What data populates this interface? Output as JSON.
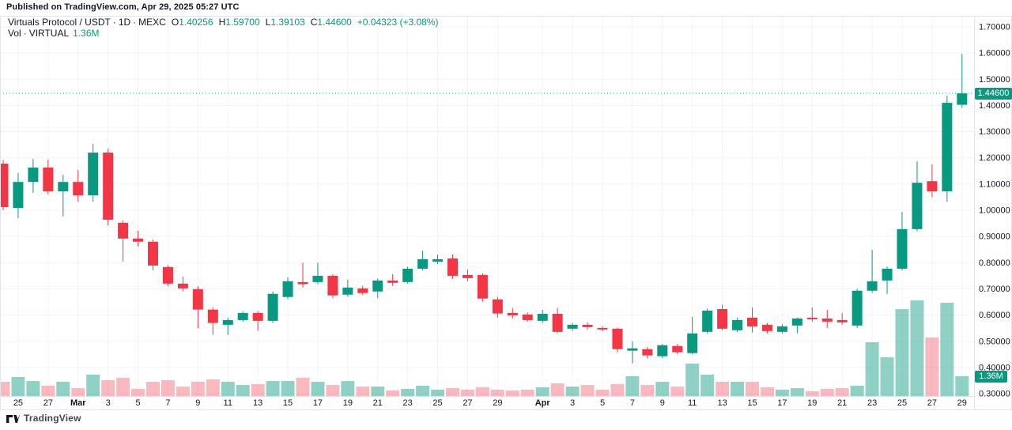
{
  "app": {
    "published_line": "Published on TradingView.com, Apr 29, 2025 05:27 UTC",
    "brand": "TradingView"
  },
  "legend": {
    "symbol": "Virtuals Protocol / USDT",
    "sep": "·",
    "interval": "1D",
    "exchange": "MEXC",
    "o_label": "O",
    "o_value": "1.40256",
    "h_label": "H",
    "h_value": "1.59700",
    "l_label": "L",
    "l_value": "1.39103",
    "c_label": "C",
    "c_value": "1.44600",
    "change": "+0.04323 (+3.08%)",
    "vol_label": "Vol",
    "vol_symbol": "VIRTUAL",
    "vol_value": "1.36M"
  },
  "axis_badges": {
    "last_price": "1.44600",
    "last_volume": "1.36M"
  },
  "colors": {
    "up": "#089981",
    "down": "#f23645",
    "vol_up": "rgba(8,153,129,0.45)",
    "vol_down": "rgba(242,54,69,0.35)",
    "grid": "#f0f3fa",
    "border": "#e0e3eb",
    "axis_text": "#131722",
    "badge_bg": "#089981"
  },
  "chart_data": {
    "type": "candlestick",
    "title": "Virtuals Protocol / USDT · 1D · MEXC",
    "legend_position": "top-left",
    "grid": true,
    "ylim": [
      0.3,
      1.7
    ],
    "y_tick_step": 0.1,
    "y_tick_decimals": 5,
    "volume_unit": "M",
    "last_volume_m": 1.36,
    "x_ticks": [
      {
        "i": 1,
        "label": "25"
      },
      {
        "i": 3,
        "label": "27"
      },
      {
        "i": 5,
        "label": "Mar",
        "month": true
      },
      {
        "i": 7,
        "label": "3"
      },
      {
        "i": 9,
        "label": "5"
      },
      {
        "i": 11,
        "label": "7"
      },
      {
        "i": 13,
        "label": "9"
      },
      {
        "i": 15,
        "label": "11"
      },
      {
        "i": 17,
        "label": "13"
      },
      {
        "i": 19,
        "label": "15"
      },
      {
        "i": 21,
        "label": "17"
      },
      {
        "i": 23,
        "label": "19"
      },
      {
        "i": 25,
        "label": "21"
      },
      {
        "i": 27,
        "label": "23"
      },
      {
        "i": 29,
        "label": "25"
      },
      {
        "i": 31,
        "label": "27"
      },
      {
        "i": 33,
        "label": "29"
      },
      {
        "i": 36,
        "label": "Apr",
        "month": true
      },
      {
        "i": 38,
        "label": "3"
      },
      {
        "i": 40,
        "label": "5"
      },
      {
        "i": 42,
        "label": "7"
      },
      {
        "i": 44,
        "label": "9"
      },
      {
        "i": 46,
        "label": "11"
      },
      {
        "i": 48,
        "label": "13"
      },
      {
        "i": 50,
        "label": "15"
      },
      {
        "i": 52,
        "label": "17"
      },
      {
        "i": 54,
        "label": "19"
      },
      {
        "i": 56,
        "label": "21"
      },
      {
        "i": 58,
        "label": "23"
      },
      {
        "i": 60,
        "label": "25"
      },
      {
        "i": 62,
        "label": "27"
      },
      {
        "i": 64,
        "label": "29"
      }
    ],
    "candles": [
      {
        "d": "Feb 24",
        "o": 1.178,
        "h": 1.192,
        "l": 1.0,
        "c": 1.012,
        "v": 0.98
      },
      {
        "d": "Feb 25",
        "o": 1.009,
        "h": 1.142,
        "l": 0.97,
        "c": 1.108,
        "v": 1.31
      },
      {
        "d": "Feb 26",
        "o": 1.108,
        "h": 1.196,
        "l": 1.066,
        "c": 1.163,
        "v": 1.03
      },
      {
        "d": "Feb 27",
        "o": 1.163,
        "h": 1.193,
        "l": 1.06,
        "c": 1.072,
        "v": 0.71
      },
      {
        "d": "Feb 28",
        "o": 1.072,
        "h": 1.136,
        "l": 0.976,
        "c": 1.108,
        "v": 0.98
      },
      {
        "d": "Mar 1",
        "o": 1.108,
        "h": 1.154,
        "l": 1.033,
        "c": 1.057,
        "v": 0.54
      },
      {
        "d": "Mar 2",
        "o": 1.057,
        "h": 1.253,
        "l": 1.033,
        "c": 1.22,
        "v": 1.47
      },
      {
        "d": "Mar 3",
        "o": 1.22,
        "h": 1.235,
        "l": 0.943,
        "c": 0.964,
        "v": 1.09
      },
      {
        "d": "Mar 4",
        "o": 0.952,
        "h": 0.961,
        "l": 0.804,
        "c": 0.892,
        "v": 1.25
      },
      {
        "d": "Mar 5",
        "o": 0.892,
        "h": 0.922,
        "l": 0.862,
        "c": 0.88,
        "v": 0.49
      },
      {
        "d": "Mar 6",
        "o": 0.88,
        "h": 0.888,
        "l": 0.771,
        "c": 0.789,
        "v": 0.98
      },
      {
        "d": "Mar 7",
        "o": 0.783,
        "h": 0.79,
        "l": 0.71,
        "c": 0.72,
        "v": 1.09
      },
      {
        "d": "Mar 8",
        "o": 0.72,
        "h": 0.747,
        "l": 0.69,
        "c": 0.702,
        "v": 0.65
      },
      {
        "d": "Mar 9",
        "o": 0.699,
        "h": 0.71,
        "l": 0.55,
        "c": 0.621,
        "v": 0.98
      },
      {
        "d": "Mar 10",
        "o": 0.621,
        "h": 0.63,
        "l": 0.524,
        "c": 0.57,
        "v": 1.14
      },
      {
        "d": "Mar 11",
        "o": 0.563,
        "h": 0.59,
        "l": 0.524,
        "c": 0.581,
        "v": 0.98
      },
      {
        "d": "Mar 12",
        "o": 0.581,
        "h": 0.615,
        "l": 0.575,
        "c": 0.608,
        "v": 0.76
      },
      {
        "d": "Mar 13",
        "o": 0.608,
        "h": 0.615,
        "l": 0.54,
        "c": 0.578,
        "v": 0.82
      },
      {
        "d": "Mar 14",
        "o": 0.578,
        "h": 0.69,
        "l": 0.57,
        "c": 0.681,
        "v": 1.03
      },
      {
        "d": "Mar 15",
        "o": 0.669,
        "h": 0.744,
        "l": 0.66,
        "c": 0.729,
        "v": 1.03
      },
      {
        "d": "Mar 16",
        "o": 0.726,
        "h": 0.8,
        "l": 0.705,
        "c": 0.718,
        "v": 1.25
      },
      {
        "d": "Mar 17",
        "o": 0.726,
        "h": 0.8,
        "l": 0.718,
        "c": 0.75,
        "v": 0.98
      },
      {
        "d": "Mar 18",
        "o": 0.75,
        "h": 0.756,
        "l": 0.665,
        "c": 0.675,
        "v": 0.76
      },
      {
        "d": "Mar 19",
        "o": 0.678,
        "h": 0.735,
        "l": 0.67,
        "c": 0.705,
        "v": 1.03
      },
      {
        "d": "Mar 20",
        "o": 0.702,
        "h": 0.712,
        "l": 0.676,
        "c": 0.684,
        "v": 0.65
      },
      {
        "d": "Mar 21",
        "o": 0.69,
        "h": 0.74,
        "l": 0.665,
        "c": 0.732,
        "v": 0.65
      },
      {
        "d": "Mar 22",
        "o": 0.732,
        "h": 0.756,
        "l": 0.711,
        "c": 0.723,
        "v": 0.38
      },
      {
        "d": "Mar 23",
        "o": 0.726,
        "h": 0.785,
        "l": 0.72,
        "c": 0.777,
        "v": 0.49
      },
      {
        "d": "Mar 24",
        "o": 0.777,
        "h": 0.846,
        "l": 0.77,
        "c": 0.813,
        "v": 0.71
      },
      {
        "d": "Mar 25",
        "o": 0.804,
        "h": 0.831,
        "l": 0.795,
        "c": 0.813,
        "v": 0.44
      },
      {
        "d": "Mar 26",
        "o": 0.816,
        "h": 0.831,
        "l": 0.738,
        "c": 0.75,
        "v": 0.54
      },
      {
        "d": "Mar 27",
        "o": 0.753,
        "h": 0.774,
        "l": 0.729,
        "c": 0.741,
        "v": 0.44
      },
      {
        "d": "Mar 28",
        "o": 0.753,
        "h": 0.76,
        "l": 0.651,
        "c": 0.663,
        "v": 0.6
      },
      {
        "d": "Mar 29",
        "o": 0.66,
        "h": 0.67,
        "l": 0.59,
        "c": 0.606,
        "v": 0.44
      },
      {
        "d": "Mar 30",
        "o": 0.608,
        "h": 0.627,
        "l": 0.587,
        "c": 0.599,
        "v": 0.38
      },
      {
        "d": "Mar 31",
        "o": 0.602,
        "h": 0.61,
        "l": 0.575,
        "c": 0.581,
        "v": 0.44
      },
      {
        "d": "Apr 1",
        "o": 0.578,
        "h": 0.62,
        "l": 0.57,
        "c": 0.605,
        "v": 0.6
      },
      {
        "d": "Apr 2",
        "o": 0.605,
        "h": 0.627,
        "l": 0.53,
        "c": 0.536,
        "v": 0.87
      },
      {
        "d": "Apr 3",
        "o": 0.548,
        "h": 0.57,
        "l": 0.54,
        "c": 0.563,
        "v": 0.65
      },
      {
        "d": "Apr 4",
        "o": 0.563,
        "h": 0.572,
        "l": 0.545,
        "c": 0.554,
        "v": 0.76
      },
      {
        "d": "Apr 5",
        "o": 0.551,
        "h": 0.558,
        "l": 0.538,
        "c": 0.545,
        "v": 0.44
      },
      {
        "d": "Apr 6",
        "o": 0.548,
        "h": 0.552,
        "l": 0.458,
        "c": 0.47,
        "v": 0.82
      },
      {
        "d": "Apr 7",
        "o": 0.464,
        "h": 0.5,
        "l": 0.416,
        "c": 0.473,
        "v": 1.36
      },
      {
        "d": "Apr 8",
        "o": 0.47,
        "h": 0.478,
        "l": 0.435,
        "c": 0.446,
        "v": 0.76
      },
      {
        "d": "Apr 9",
        "o": 0.443,
        "h": 0.49,
        "l": 0.435,
        "c": 0.485,
        "v": 0.98
      },
      {
        "d": "Apr 10",
        "o": 0.482,
        "h": 0.49,
        "l": 0.45,
        "c": 0.458,
        "v": 0.65
      },
      {
        "d": "Apr 11",
        "o": 0.455,
        "h": 0.593,
        "l": 0.45,
        "c": 0.53,
        "v": 2.23
      },
      {
        "d": "Apr 12",
        "o": 0.536,
        "h": 0.625,
        "l": 0.53,
        "c": 0.617,
        "v": 1.47
      },
      {
        "d": "Apr 13",
        "o": 0.623,
        "h": 0.639,
        "l": 0.542,
        "c": 0.548,
        "v": 0.98
      },
      {
        "d": "Apr 14",
        "o": 0.542,
        "h": 0.59,
        "l": 0.535,
        "c": 0.581,
        "v": 0.98
      },
      {
        "d": "Apr 15",
        "o": 0.59,
        "h": 0.629,
        "l": 0.533,
        "c": 0.557,
        "v": 0.98
      },
      {
        "d": "Apr 16",
        "o": 0.563,
        "h": 0.57,
        "l": 0.53,
        "c": 0.539,
        "v": 0.6
      },
      {
        "d": "Apr 17",
        "o": 0.536,
        "h": 0.565,
        "l": 0.53,
        "c": 0.557,
        "v": 0.44
      },
      {
        "d": "Apr 18",
        "o": 0.56,
        "h": 0.59,
        "l": 0.53,
        "c": 0.587,
        "v": 0.54
      },
      {
        "d": "Apr 19",
        "o": 0.59,
        "h": 0.629,
        "l": 0.575,
        "c": 0.584,
        "v": 0.33
      },
      {
        "d": "Apr 20",
        "o": 0.587,
        "h": 0.62,
        "l": 0.551,
        "c": 0.575,
        "v": 0.49
      },
      {
        "d": "Apr 21",
        "o": 0.581,
        "h": 0.608,
        "l": 0.563,
        "c": 0.572,
        "v": 0.54
      },
      {
        "d": "Apr 22",
        "o": 0.56,
        "h": 0.7,
        "l": 0.551,
        "c": 0.693,
        "v": 0.71
      },
      {
        "d": "Apr 23",
        "o": 0.693,
        "h": 0.849,
        "l": 0.685,
        "c": 0.729,
        "v": 3.7
      },
      {
        "d": "Apr 24",
        "o": 0.732,
        "h": 0.785,
        "l": 0.681,
        "c": 0.777,
        "v": 2.67
      },
      {
        "d": "Apr 25",
        "o": 0.777,
        "h": 0.994,
        "l": 0.77,
        "c": 0.928,
        "v": 5.98
      },
      {
        "d": "Apr 26",
        "o": 0.928,
        "h": 1.187,
        "l": 0.92,
        "c": 1.105,
        "v": 6.58
      },
      {
        "d": "Apr 27",
        "o": 1.111,
        "h": 1.175,
        "l": 1.051,
        "c": 1.072,
        "v": 4.03
      },
      {
        "d": "Apr 28",
        "o": 1.072,
        "h": 1.437,
        "l": 1.033,
        "c": 1.41,
        "v": 6.42
      },
      {
        "d": "Apr 29",
        "o": 1.40256,
        "h": 1.597,
        "l": 1.39103,
        "c": 1.446,
        "v": 1.36
      }
    ]
  }
}
